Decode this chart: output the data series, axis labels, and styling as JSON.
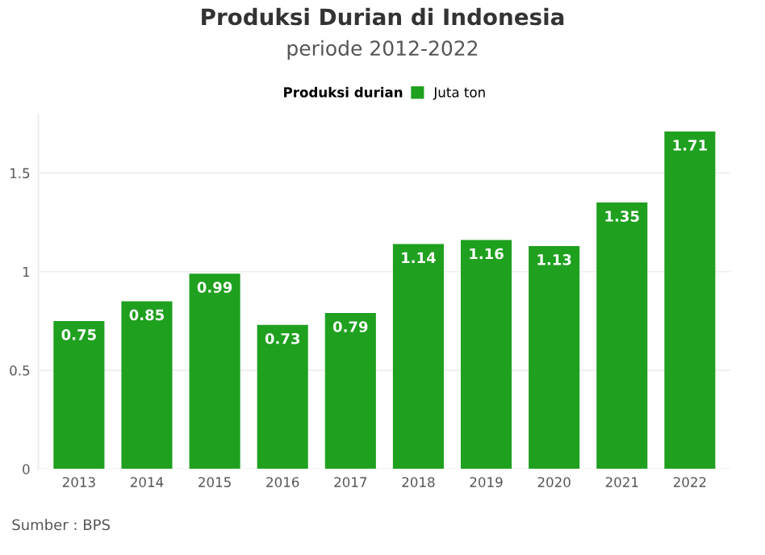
{
  "chart_data": {
    "type": "bar",
    "title": "Produksi Durian di Indonesia",
    "subtitle": "periode 2012-2022",
    "legend_title": "Produksi durian",
    "categories": [
      "2013",
      "2014",
      "2015",
      "2016",
      "2017",
      "2018",
      "2019",
      "2020",
      "2021",
      "2022"
    ],
    "series": [
      {
        "name": "Juta ton",
        "color": "#1fa01f",
        "values": [
          0.75,
          0.85,
          0.99,
          0.73,
          0.79,
          1.14,
          1.16,
          1.13,
          1.35,
          1.71
        ]
      }
    ],
    "ylim": [
      0,
      1.8
    ],
    "yticks": [
      0,
      0.5,
      1,
      1.5
    ],
    "grid": "y",
    "legend": "top",
    "data_labels": true,
    "annotations": [
      "Sumber : BPS"
    ]
  }
}
